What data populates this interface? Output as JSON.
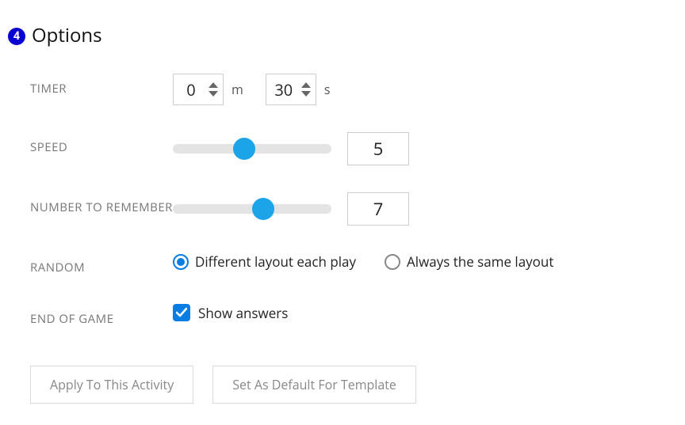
{
  "header": {
    "step_number": "4",
    "title": "Options",
    "badge_bg": "#0a00d1",
    "badge_fg": "#ffffff"
  },
  "timer": {
    "label": "TIMER",
    "minutes": "0",
    "seconds": "30",
    "unit_min": "m",
    "unit_sec": "s"
  },
  "speed": {
    "label": "SPEED",
    "value": "5",
    "thumb_percent": 45,
    "thumb_color": "#1ba5e8",
    "track_color": "#e4e4e4"
  },
  "number_to_remember": {
    "label": "NUMBER TO REMEMBER",
    "value": "7",
    "thumb_percent": 57,
    "thumb_color": "#1ba5e8",
    "track_color": "#e4e4e4"
  },
  "random": {
    "label": "RANDOM",
    "option1": "Different layout each play",
    "option2": "Always the same layout",
    "selected": 0,
    "radio_checked_color": "#0a7de5"
  },
  "end_of_game": {
    "label": "END OF GAME",
    "checkbox_label": "Show answers",
    "checked": true,
    "checkbox_color": "#0a7de5"
  },
  "buttons": {
    "apply": "Apply To This Activity",
    "default": "Set As Default For Template"
  },
  "colors": {
    "label_text": "#777777",
    "body_text": "#222222",
    "border": "#cccccc",
    "button_border": "#d9d9d9",
    "button_text": "#888888"
  }
}
